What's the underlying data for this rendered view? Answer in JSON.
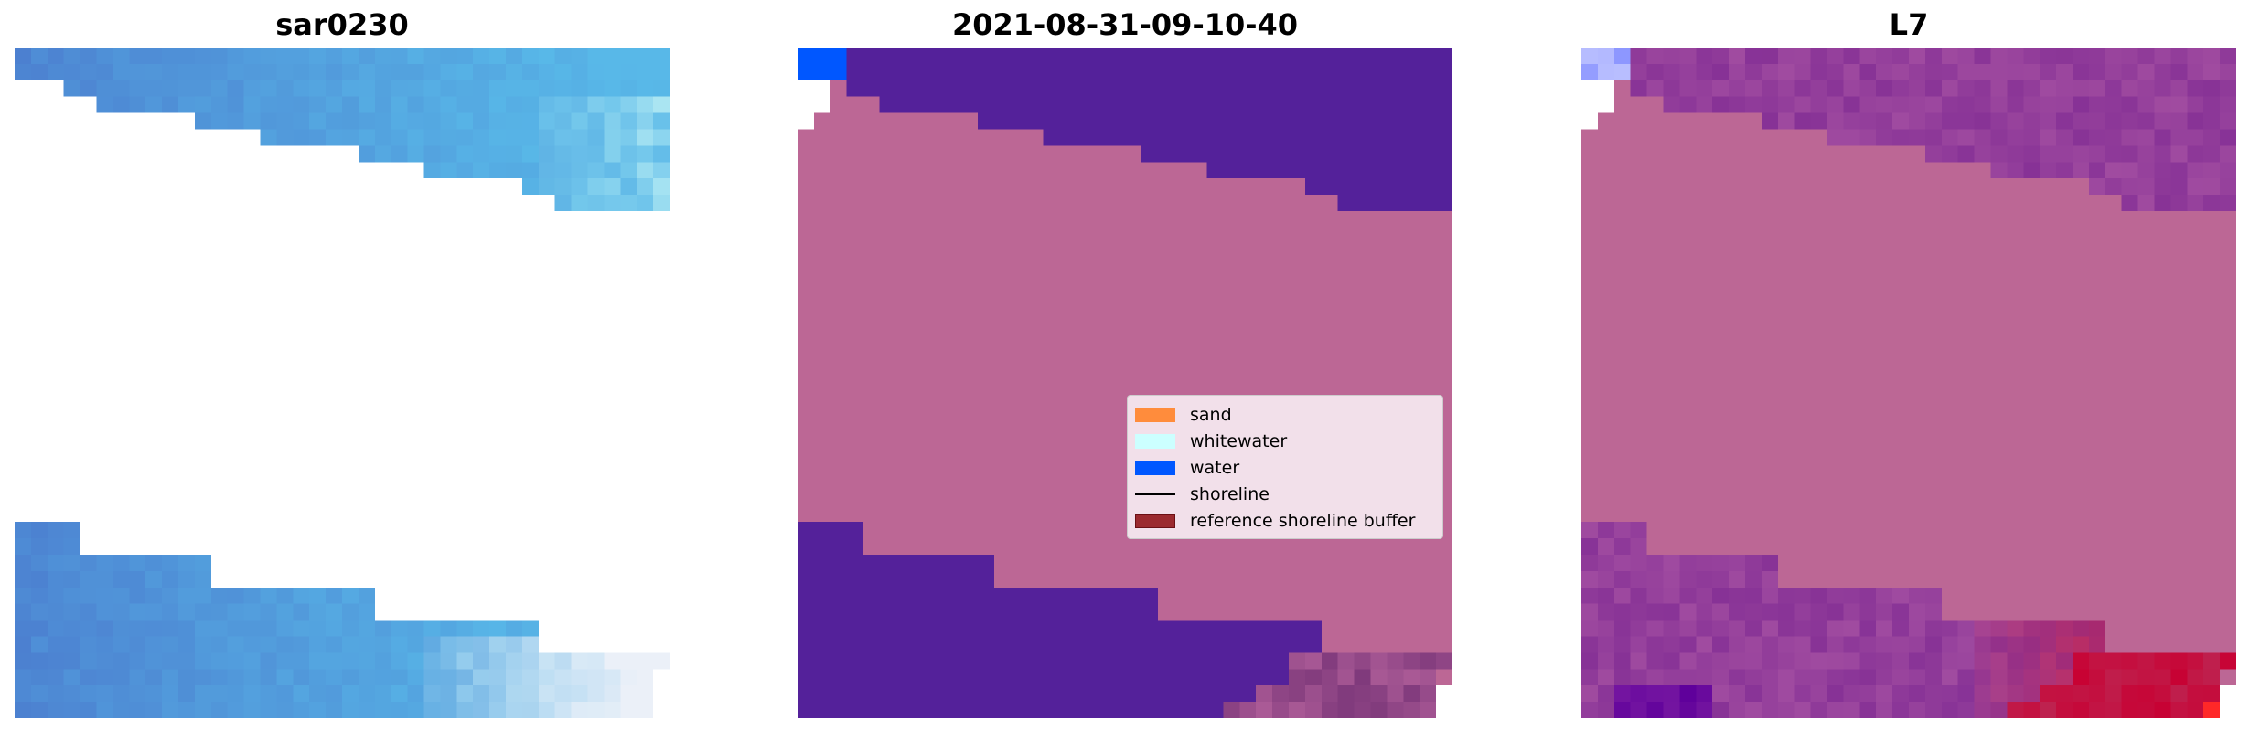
{
  "panels": [
    {
      "title": "sar0230"
    },
    {
      "title": "2021-08-31-09-10-40"
    },
    {
      "title": "L7"
    }
  ],
  "legend": {
    "placement": "center-right of middle panel",
    "items": [
      {
        "label": "sand",
        "type": "patch",
        "color": "#ff8c3c"
      },
      {
        "label": "whitewater",
        "type": "patch",
        "color": "#ccffff"
      },
      {
        "label": "water",
        "type": "patch",
        "color": "#0057ff"
      },
      {
        "label": "shoreline",
        "type": "line",
        "color": "#000000"
      },
      {
        "label": "reference shoreline buffer",
        "type": "patch",
        "color": "#9b2a2f"
      }
    ]
  },
  "colors": {
    "classified_land": "#bc6795",
    "classified_water_dark": "#54219a",
    "water_patch": "#0057ff",
    "rgb_water_blue": "#4f8fd8"
  },
  "chart_data": {
    "type": "heatmap",
    "title": "",
    "axes": "off",
    "subplots": [
      "sar0230",
      "2021-08-31-09-10-40",
      "L7"
    ]
  }
}
